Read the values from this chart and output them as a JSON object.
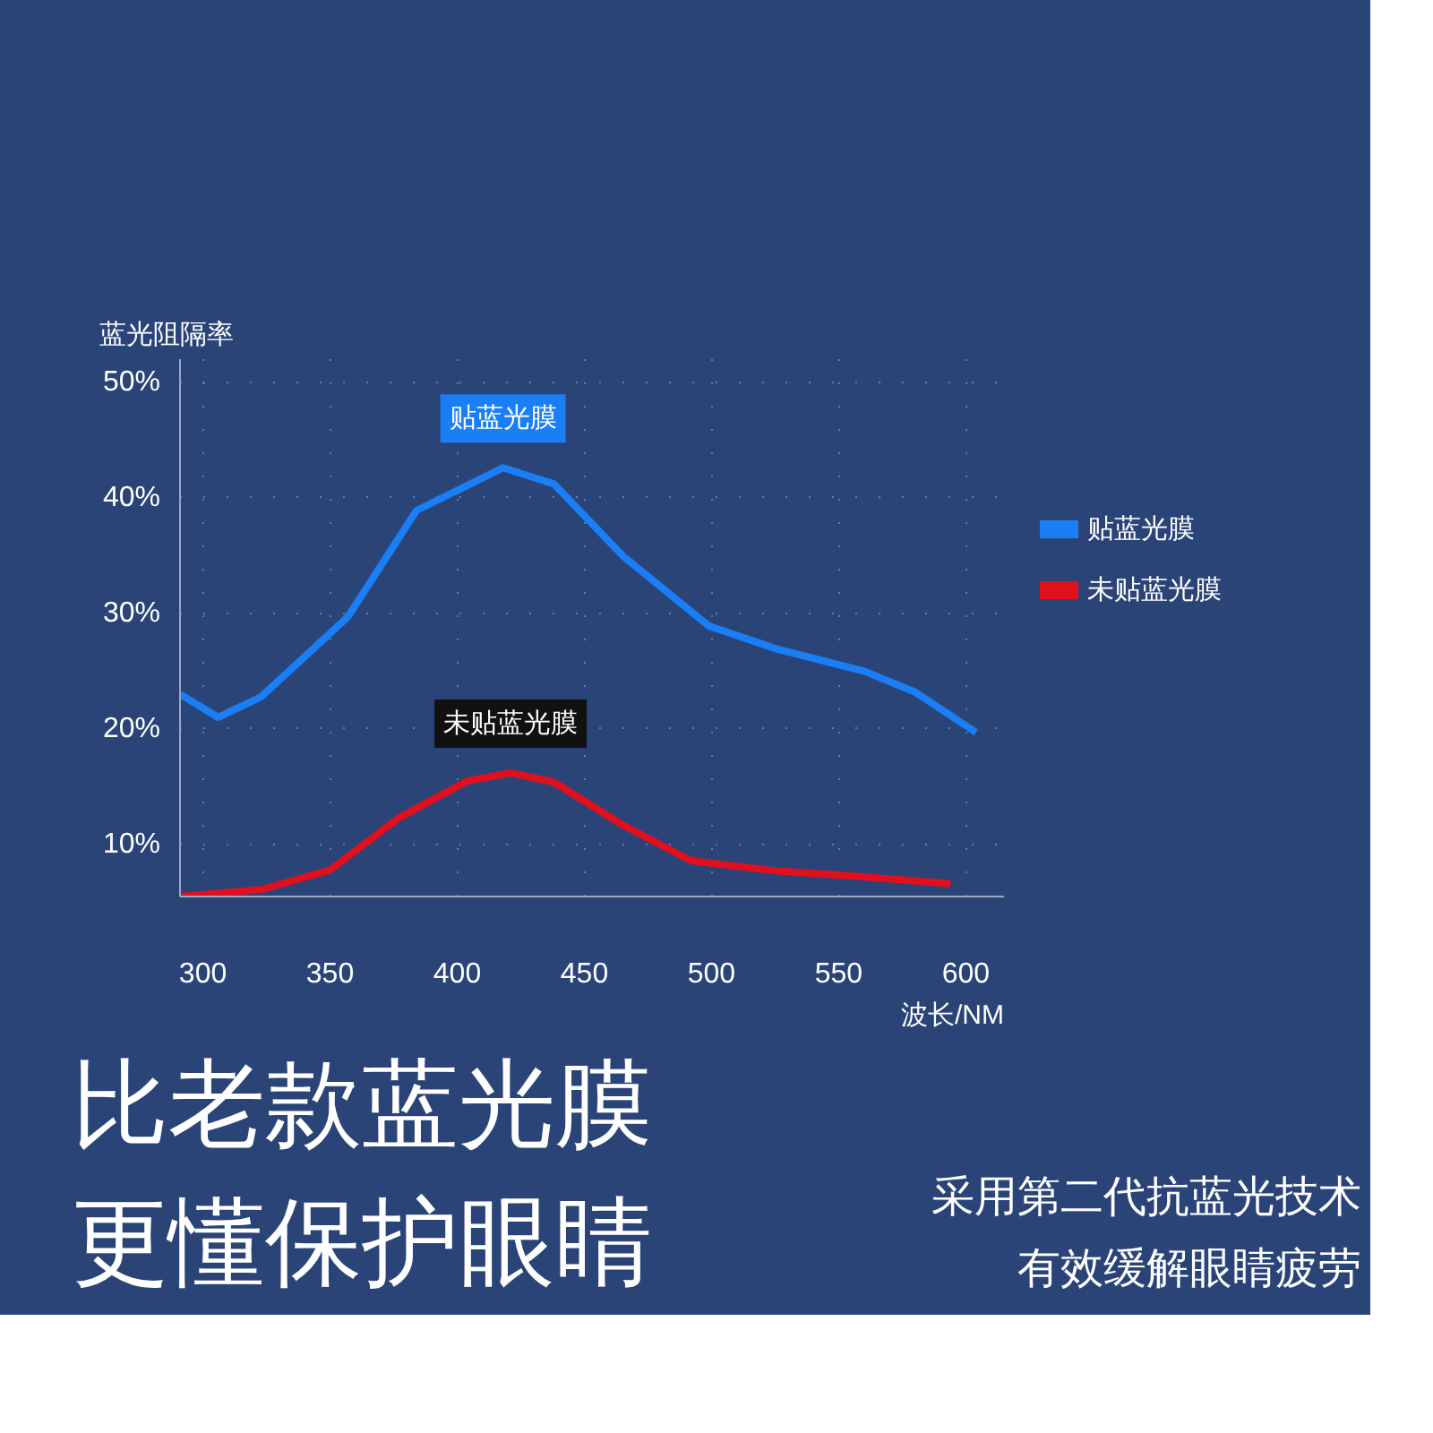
{
  "chart_data": {
    "type": "line",
    "xlabel": "波长/NM",
    "ylabel": "蓝光阻隔率",
    "xlim": [
      291,
      615
    ],
    "xticks": [
      300,
      350,
      400,
      450,
      500,
      550,
      600
    ],
    "ylim": [
      5.5,
      52
    ],
    "yticks": [
      {
        "value": 10,
        "label": "10%"
      },
      {
        "value": 20,
        "label": "20%"
      },
      {
        "value": 30,
        "label": "30%"
      },
      {
        "value": 40,
        "label": "40%"
      },
      {
        "value": 50,
        "label": "50%"
      }
    ],
    "grid": true,
    "legend": "right",
    "line_style": "solid",
    "series": [
      {
        "name": "贴蓝光膜",
        "color": "#1a7ff5",
        "x": [
          291,
          306,
          323,
          357,
          384,
          418,
          438,
          465,
          499,
          526,
          560,
          580,
          604
        ],
        "values": [
          23,
          21,
          22.8,
          29.7,
          38.9,
          42.6,
          41.2,
          35,
          28.9,
          26.9,
          25,
          23.2,
          19.7
        ]
      },
      {
        "name": "未贴蓝光膜",
        "color": "#e0101e",
        "x": [
          291,
          323,
          350,
          377,
          404,
          421,
          438,
          465,
          492,
          526,
          560,
          594
        ],
        "values": [
          5.5,
          6.1,
          7.8,
          12.3,
          15.5,
          16.2,
          15.4,
          11.7,
          8.6,
          7.7,
          7.2,
          6.6
        ]
      }
    ],
    "annotations": [
      {
        "text": "贴蓝光膜",
        "x": 418,
        "y": 42.6
      },
      {
        "text": "未贴蓝光膜",
        "x": 421,
        "y": 16.2
      },
      "比老款蓝光膜",
      "更懂保护眼睛",
      "采用第二代抗蓝光技术",
      "有效缓解眼睛疲劳"
    ]
  }
}
